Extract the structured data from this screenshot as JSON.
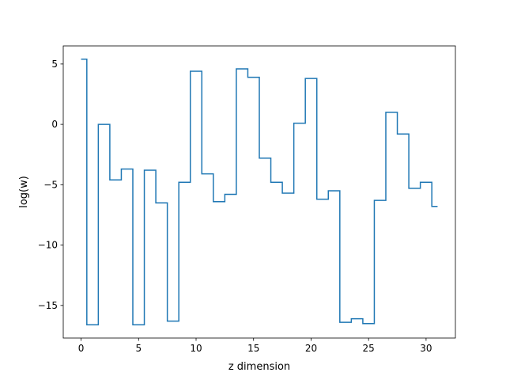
{
  "chart_data": {
    "type": "line",
    "drawstyle": "steps-mid",
    "title": "",
    "xlabel": "z dimension",
    "ylabel": "log(w)",
    "xlim": [
      -1.55,
      32.55
    ],
    "ylim": [
      -17.7,
      6.5
    ],
    "xticks": [
      0,
      5,
      10,
      15,
      20,
      25,
      30
    ],
    "xtick_labels": [
      "0",
      "5",
      "10",
      "15",
      "20",
      "25",
      "30"
    ],
    "yticks": [
      5,
      0,
      -5,
      -10,
      -15
    ],
    "ytick_labels": [
      "5",
      "0",
      "−5",
      "−10",
      "−15"
    ],
    "grid": false,
    "series": [
      {
        "color": "#1f77b4",
        "x": [
          0,
          1,
          2,
          3,
          4,
          5,
          6,
          7,
          8,
          9,
          10,
          11,
          12,
          13,
          14,
          15,
          16,
          17,
          18,
          19,
          20,
          21,
          22,
          23,
          24,
          25,
          26,
          27,
          28,
          29,
          30,
          31
        ],
        "y": [
          5.4,
          -16.6,
          0.0,
          -4.6,
          -3.7,
          -16.6,
          -3.8,
          -6.5,
          -16.3,
          -4.8,
          4.4,
          -4.1,
          -6.4,
          -5.8,
          4.6,
          3.9,
          -2.8,
          -4.8,
          -5.7,
          0.1,
          3.8,
          -6.2,
          -5.5,
          -16.4,
          -16.1,
          -16.5,
          -6.3,
          1.0,
          -0.8,
          -5.3,
          -4.8,
          -6.8
        ]
      }
    ]
  }
}
